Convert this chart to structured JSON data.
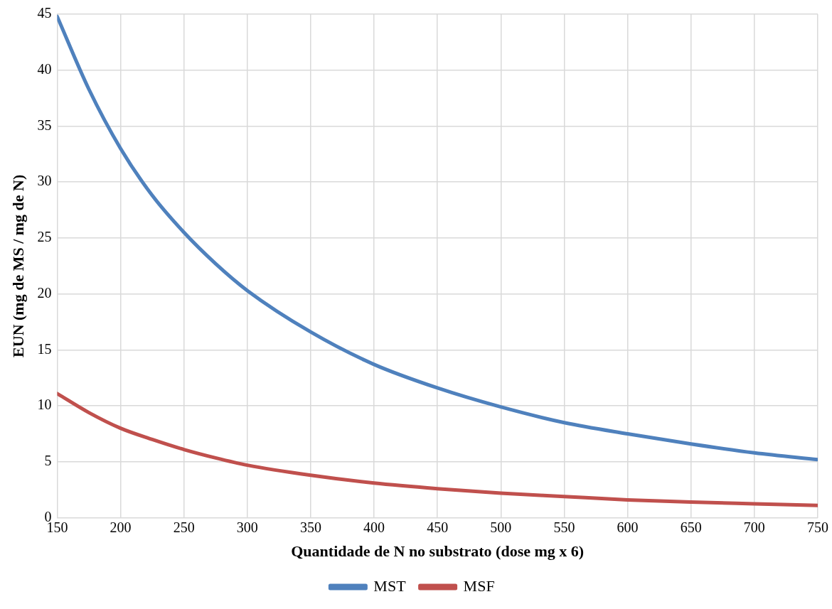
{
  "chart_data": {
    "type": "line",
    "xlabel": "Quantidade de N no substrato (dose mg x 6)",
    "ylabel": "EUN (mg de MS / mg de N)",
    "xlim": [
      150,
      750
    ],
    "xticks": [
      150,
      200,
      250,
      300,
      350,
      400,
      450,
      500,
      550,
      600,
      650,
      700,
      750
    ],
    "ylim": [
      0,
      45
    ],
    "yticks": [
      0,
      5,
      10,
      15,
      20,
      25,
      30,
      35,
      40,
      45
    ],
    "x": [
      150,
      175,
      200,
      225,
      250,
      275,
      300,
      350,
      400,
      450,
      500,
      550,
      600,
      650,
      700,
      750
    ],
    "series": [
      {
        "name": "MST",
        "color": "#4f81bd",
        "values": [
          44.8,
          38.3,
          33,
          28.8,
          25.5,
          22.7,
          20.3,
          16.6,
          13.7,
          11.6,
          9.9,
          8.5,
          7.5,
          6.6,
          5.8,
          5.2
        ]
      },
      {
        "name": "MSF",
        "color": "#c0504d",
        "values": [
          11.1,
          9.4,
          8,
          7,
          6.1,
          5.35,
          4.7,
          3.8,
          3.1,
          2.6,
          2.2,
          1.9,
          1.6,
          1.4,
          1.25,
          1.1
        ]
      }
    ],
    "grid": true,
    "legend": "bottom",
    "marker": "none",
    "line_style": "solid"
  }
}
